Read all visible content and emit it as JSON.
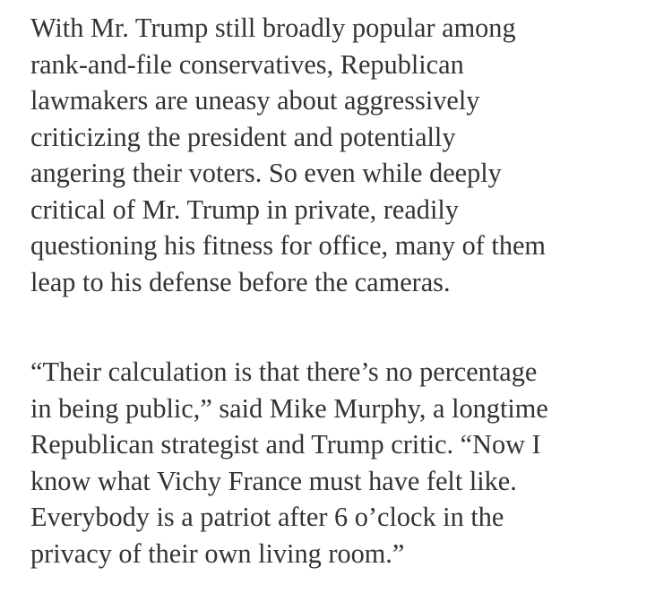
{
  "article": {
    "paragraphs": [
      {
        "lines": [
          "With Mr. Trump still broadly popular among",
          "rank-and-file conservatives, Republican",
          "lawmakers are uneasy about aggressively",
          "criticizing the president and potentially",
          "angering their voters. So even while deeply",
          "critical of Mr. Trump in private, readily",
          "questioning his fitness for office, many of them",
          "leap to his defense before the cameras."
        ]
      },
      {
        "lines": [
          "“Their calculation is that there’s no percentage",
          "in being public,” said Mike Murphy, a longtime",
          "Republican strategist and Trump critic. “Now I",
          "know what Vichy France must have felt like.",
          "Everybody is a patriot after 6 o’clock in the",
          "privacy of their own living room.”"
        ]
      }
    ]
  }
}
